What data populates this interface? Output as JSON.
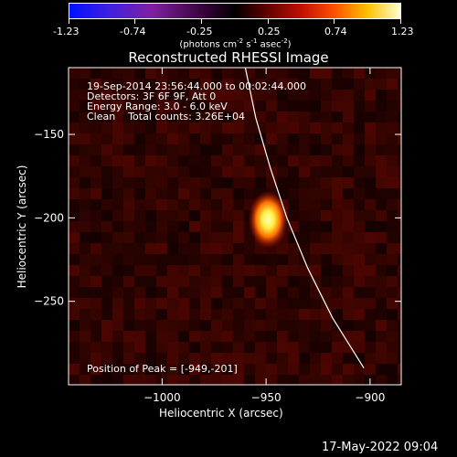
{
  "colorbar": {
    "ticks": [
      "-1.23",
      "-0.74",
      "-0.25",
      "0.25",
      "0.74",
      "1.23"
    ],
    "units_pre": "(photons cm",
    "units_exp1": "-2",
    "units_mid1": " s",
    "units_exp2": "-1",
    "units_mid2": " asec",
    "units_exp3": "-2",
    "units_post": ")"
  },
  "title": "Reconstructed RHESSI Image",
  "info": {
    "line1": "19-Sep-2014 23:56:44.000 to 00:02:44.000",
    "line2": "Detectors: 3F 6F 9F, Att 0",
    "line3": "Energy Range: 3.0 - 6.0 keV",
    "line4": "Clean    Total counts: 3.26E+04"
  },
  "peak_label": "Position of Peak = [-949,-201]",
  "footer_date": "17-May-2022 09:04",
  "chart_data": {
    "type": "heatmap",
    "title": "Reconstructed RHESSI Image",
    "xlabel": "Heliocentric X (arcsec)",
    "ylabel": "Heliocentric Y (arcsec)",
    "x_ticks": [
      -1000,
      -950,
      -900
    ],
    "y_ticks": [
      -150,
      -200,
      -250
    ],
    "xlim": [
      -1045,
      -885
    ],
    "ylim": [
      -300,
      -110
    ],
    "colorbar_range": [
      -1.23,
      1.23
    ],
    "colormap": "hot",
    "peak": {
      "x": -949,
      "y": -201
    },
    "limb_curve": [
      [
        -960,
        -110
      ],
      [
        -955,
        -140
      ],
      [
        -948,
        -170
      ],
      [
        -940,
        -200
      ],
      [
        -930,
        -230
      ],
      [
        -918,
        -260
      ],
      [
        -903,
        -290
      ]
    ],
    "colors": {
      "background": "#000000",
      "limb": "#ffffff",
      "peak_core": "#ffffa0"
    }
  }
}
